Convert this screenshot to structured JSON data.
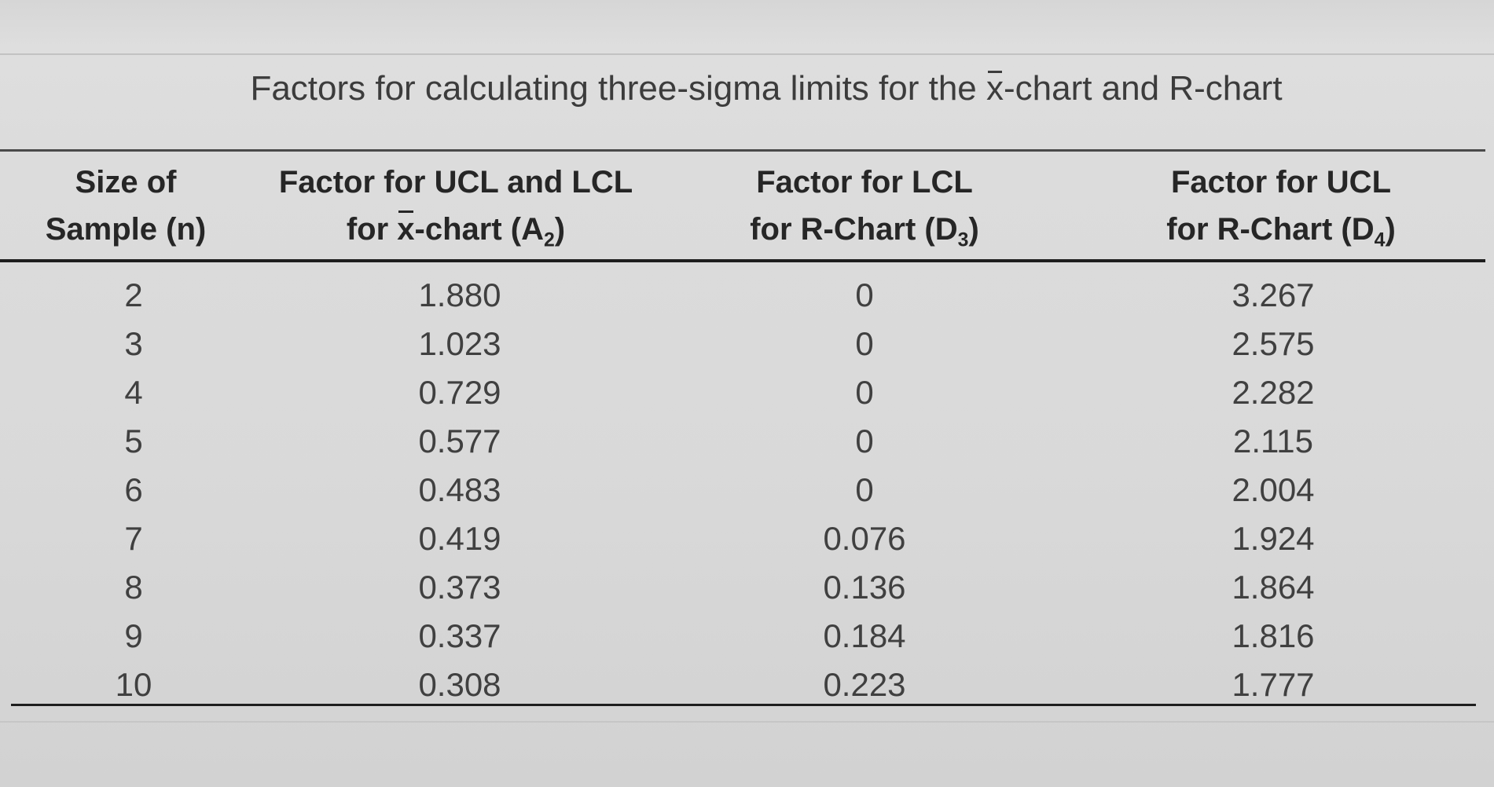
{
  "title": {
    "prefix": "Factors for calculating three-sigma limits for the ",
    "xbar": "x",
    "suffix": "-chart and R-chart"
  },
  "columns": {
    "size": {
      "line1": "Size of",
      "line2": "Sample (n)"
    },
    "a2": {
      "line1": "Factor for UCL and LCL",
      "line2_pre": "for ",
      "line2_x": "x",
      "line2_post": "-chart (A",
      "sub": "2",
      "close": ")"
    },
    "d3": {
      "line1": "Factor for LCL",
      "line2_pre": "for R-Chart (D",
      "sub": "3",
      "close": ")"
    },
    "d4": {
      "line1": "Factor for UCL",
      "line2_pre": "for R-Chart (D",
      "sub": "4",
      "close": ")"
    }
  },
  "rows": [
    {
      "n": "2",
      "a2": "1.880",
      "d3": "0",
      "d4": "3.267"
    },
    {
      "n": "3",
      "a2": "1.023",
      "d3": "0",
      "d4": "2.575"
    },
    {
      "n": "4",
      "a2": "0.729",
      "d3": "0",
      "d4": "2.282"
    },
    {
      "n": "5",
      "a2": "0.577",
      "d3": "0",
      "d4": "2.115"
    },
    {
      "n": "6",
      "a2": "0.483",
      "d3": "0",
      "d4": "2.004"
    },
    {
      "n": "7",
      "a2": "0.419",
      "d3": "0.076",
      "d4": "1.924"
    },
    {
      "n": "8",
      "a2": "0.373",
      "d3": "0.136",
      "d4": "1.864"
    },
    {
      "n": "9",
      "a2": "0.337",
      "d3": "0.184",
      "d4": "1.816"
    },
    {
      "n": "10",
      "a2": "0.308",
      "d3": "0.223",
      "d4": "1.777"
    }
  ]
}
